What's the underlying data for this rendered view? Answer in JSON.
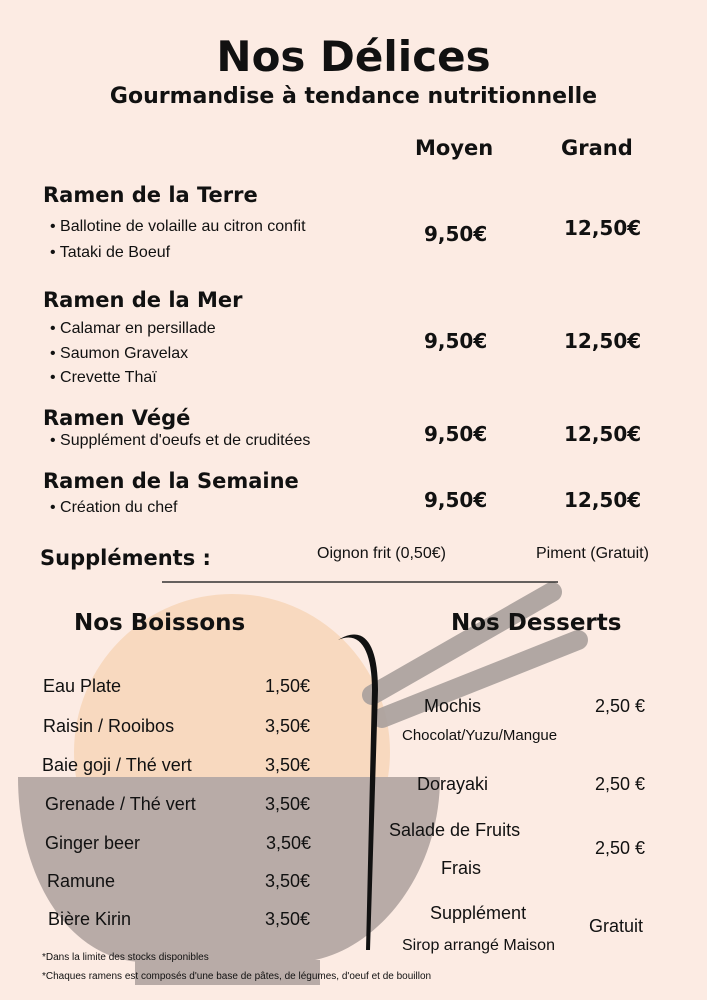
{
  "header": {
    "title": "Nos Délices",
    "subtitle": "Gourmandise à tendance nutritionnelle"
  },
  "columns": {
    "medium": "Moyen",
    "large": "Grand"
  },
  "ramens": [
    {
      "name": "Ramen de la Terre",
      "items": [
        "Ballotine de volaille au citron confit",
        "Tataki de Boeuf"
      ],
      "medium": "9,50€",
      "large": "12,50€"
    },
    {
      "name": "Ramen de la Mer",
      "items": [
        "Calamar en persillade",
        "Saumon Gravelax",
        "Crevette Thaï"
      ],
      "medium": "9,50€",
      "large": "12,50€"
    },
    {
      "name": "Ramen Végé",
      "items": [
        "Supplément d'oeufs et de cruditées"
      ],
      "medium": "9,50€",
      "large": "12,50€"
    },
    {
      "name": "Ramen de la Semaine",
      "items": [
        "Création du chef"
      ],
      "medium": "9,50€",
      "large": "12,50€"
    }
  ],
  "supplements": {
    "label": "Suppléments :",
    "options": [
      "Oignon frit (0,50€)",
      "Piment (Gratuit)"
    ]
  },
  "drinks": {
    "title": "Nos Boissons",
    "items": [
      {
        "name": "Eau Plate",
        "price": "1,50€"
      },
      {
        "name": "Raisin / Rooibos",
        "price": "3,50€"
      },
      {
        "name": "Baie goji / Thé vert",
        "price": "3,50€"
      },
      {
        "name": "Grenade / Thé vert",
        "price": "3,50€"
      },
      {
        "name": "Ginger beer",
        "price": "3,50€"
      },
      {
        "name": "Ramune",
        "price": "3,50€"
      },
      {
        "name": "Bière Kirin",
        "price": "3,50€"
      }
    ]
  },
  "desserts": {
    "title": "Nos Desserts",
    "items": [
      {
        "name": "Mochis",
        "sub": "Chocolat/Yuzu/Mangue",
        "price": "2,50 €"
      },
      {
        "name": "Dorayaki",
        "price": "2,50 €"
      },
      {
        "name": "Salade de Fruits",
        "sub": "Frais",
        "price": "2,50 €"
      },
      {
        "name": "Supplément",
        "sub": "Sirop arrangé Maison",
        "price": "Gratuit"
      }
    ]
  },
  "notes": [
    "*Dans la limite des stocks disponibles",
    "*Chaques ramens est composés d'une base de pâtes, de légumes, d'oeuf et de bouillon"
  ],
  "colors": {
    "background": "#fcebe3",
    "peach": "#f8d9bf",
    "bowl": "#b8aba7"
  }
}
